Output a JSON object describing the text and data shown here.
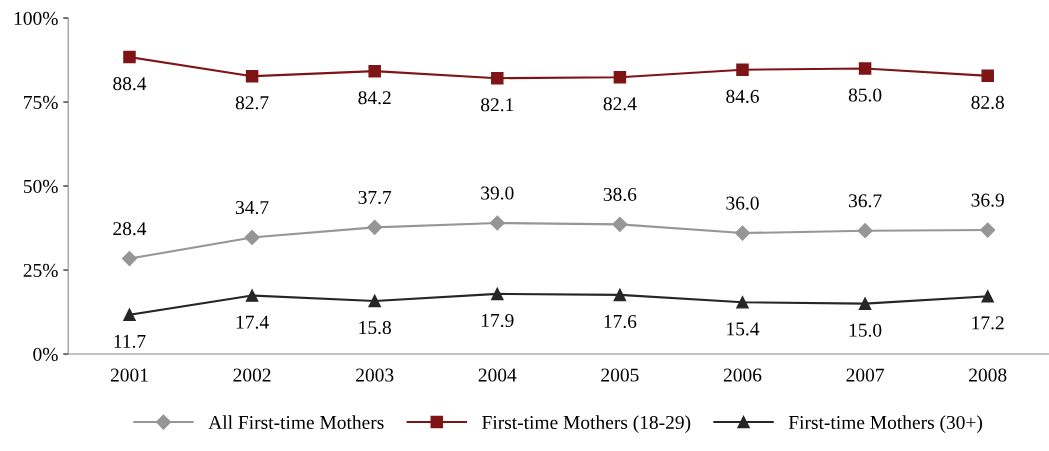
{
  "chart_data": {
    "type": "line",
    "categories": [
      "2001",
      "2002",
      "2003",
      "2004",
      "2005",
      "2006",
      "2007",
      "2008"
    ],
    "series": [
      {
        "name": "All First-time Mothers",
        "color": "#969696",
        "marker": "diamond",
        "values": [
          28.4,
          34.7,
          37.7,
          39.0,
          38.6,
          36.0,
          36.7,
          36.9
        ],
        "value_labels": [
          "28.4",
          "34.7",
          "37.7",
          "39.0",
          "38.6",
          "36.0",
          "36.7",
          "36.9"
        ]
      },
      {
        "name": "First-time Mothers (18-29)",
        "color": "#7f1416",
        "marker": "square",
        "values": [
          88.4,
          82.7,
          84.2,
          82.1,
          82.4,
          84.6,
          85.0,
          82.8
        ],
        "value_labels": [
          "88.4",
          "82.7",
          "84.2",
          "82.1",
          "82.4",
          "84.6",
          "85.0",
          "82.8"
        ]
      },
      {
        "name": "First-time Mothers (30+)",
        "color": "#262626",
        "marker": "triangle",
        "values": [
          11.7,
          17.4,
          15.8,
          17.9,
          17.6,
          15.4,
          15.0,
          17.2
        ],
        "value_labels": [
          "11.7",
          "17.4",
          "15.8",
          "17.9",
          "17.6",
          "15.4",
          "15.0",
          "17.2"
        ]
      }
    ],
    "ylim": [
      0,
      100
    ],
    "yticks": [
      {
        "value": 0,
        "label": "0%"
      },
      {
        "value": 25,
        "label": "25%"
      },
      {
        "value": 50,
        "label": "50%"
      },
      {
        "value": 75,
        "label": "75%"
      },
      {
        "value": 100,
        "label": "100%"
      }
    ],
    "legend": "bottom",
    "grid": false,
    "line_style": "solid"
  }
}
